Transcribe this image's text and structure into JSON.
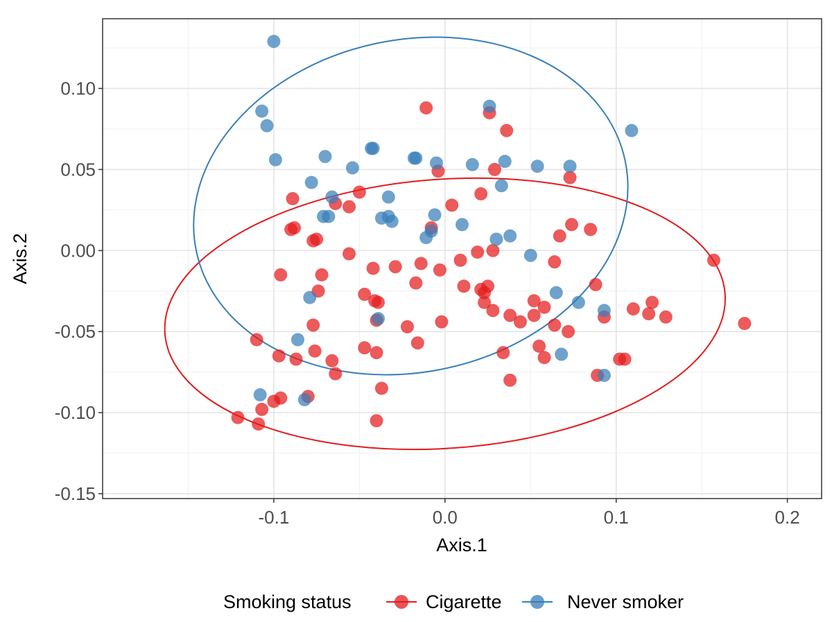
{
  "chart_data": {
    "type": "scatter",
    "title": "",
    "xlabel": "Axis.1",
    "ylabel": "Axis.2",
    "xlim": [
      -0.2,
      0.22
    ],
    "ylim": [
      -0.153,
      0.143
    ],
    "x_ticks": [
      -0.1,
      0.0,
      0.1,
      0.2
    ],
    "x_tick_labels": [
      "-0.1",
      "0.0",
      "0.1",
      "0.2"
    ],
    "y_ticks": [
      0.1,
      0.05,
      0.0,
      -0.05,
      -0.1,
      -0.15
    ],
    "y_tick_labels": [
      "0.10",
      "0.05",
      "0.00",
      "-0.05",
      "-0.10",
      "-0.15"
    ],
    "grid": true,
    "legend": {
      "title": "Smoking status",
      "position": "bottom",
      "entries": [
        "Cigarette",
        "Never smoker"
      ]
    },
    "series": [
      {
        "name": "Cigarette",
        "color": "#E41A1C",
        "points": [
          [
            -0.011,
            0.088
          ],
          [
            0.026,
            0.085
          ],
          [
            0.036,
            0.074
          ],
          [
            -0.004,
            0.049
          ],
          [
            0.029,
            0.05
          ],
          [
            0.073,
            0.045
          ],
          [
            -0.05,
            0.036
          ],
          [
            0.021,
            0.035
          ],
          [
            -0.089,
            0.032
          ],
          [
            -0.056,
            0.027
          ],
          [
            0.004,
            0.028
          ],
          [
            -0.064,
            0.029
          ],
          [
            0.074,
            0.016
          ],
          [
            0.085,
            0.013
          ],
          [
            -0.088,
            0.014
          ],
          [
            -0.09,
            0.013
          ],
          [
            -0.008,
            0.014
          ],
          [
            -0.077,
            0.006
          ],
          [
            -0.075,
            0.007
          ],
          [
            0.067,
            0.009
          ],
          [
            -0.056,
            -0.002
          ],
          [
            0.019,
            -0.001
          ],
          [
            0.028,
            0.0
          ],
          [
            -0.014,
            -0.008
          ],
          [
            0.009,
            -0.006
          ],
          [
            0.064,
            -0.007
          ],
          [
            -0.029,
            -0.01
          ],
          [
            -0.042,
            -0.011
          ],
          [
            -0.003,
            -0.012
          ],
          [
            0.157,
            -0.006
          ],
          [
            -0.096,
            -0.015
          ],
          [
            -0.072,
            -0.015
          ],
          [
            -0.017,
            -0.02
          ],
          [
            0.011,
            -0.022
          ],
          [
            0.088,
            -0.021
          ],
          [
            0.021,
            -0.024
          ],
          [
            0.025,
            -0.022
          ],
          [
            -0.074,
            -0.025
          ],
          [
            -0.047,
            -0.027
          ],
          [
            0.023,
            -0.026
          ],
          [
            -0.041,
            -0.031
          ],
          [
            -0.039,
            -0.032
          ],
          [
            0.052,
            -0.031
          ],
          [
            0.023,
            -0.032
          ],
          [
            0.121,
            -0.032
          ],
          [
            0.028,
            -0.037
          ],
          [
            0.058,
            -0.035
          ],
          [
            0.11,
            -0.036
          ],
          [
            0.038,
            -0.04
          ],
          [
            0.052,
            -0.04
          ],
          [
            0.093,
            -0.041
          ],
          [
            0.119,
            -0.039
          ],
          [
            0.129,
            -0.041
          ],
          [
            -0.04,
            -0.043
          ],
          [
            -0.002,
            -0.044
          ],
          [
            0.044,
            -0.044
          ],
          [
            0.064,
            -0.046
          ],
          [
            0.175,
            -0.045
          ],
          [
            -0.077,
            -0.046
          ],
          [
            -0.022,
            -0.047
          ],
          [
            0.072,
            -0.05
          ],
          [
            -0.11,
            -0.055
          ],
          [
            -0.016,
            -0.057
          ],
          [
            0.055,
            -0.059
          ],
          [
            -0.047,
            -0.06
          ],
          [
            -0.076,
            -0.062
          ],
          [
            -0.04,
            -0.063
          ],
          [
            0.034,
            -0.063
          ],
          [
            -0.097,
            -0.065
          ],
          [
            -0.087,
            -0.067
          ],
          [
            -0.066,
            -0.068
          ],
          [
            0.058,
            -0.066
          ],
          [
            0.102,
            -0.067
          ],
          [
            0.105,
            -0.067
          ],
          [
            -0.064,
            -0.076
          ],
          [
            0.089,
            -0.077
          ],
          [
            0.038,
            -0.08
          ],
          [
            -0.037,
            -0.085
          ],
          [
            -0.08,
            -0.09
          ],
          [
            -0.096,
            -0.091
          ],
          [
            -0.1,
            -0.093
          ],
          [
            -0.107,
            -0.098
          ],
          [
            -0.121,
            -0.103
          ],
          [
            -0.109,
            -0.107
          ],
          [
            -0.04,
            -0.105
          ]
        ]
      },
      {
        "name": "Never smoker",
        "color": "#377EB8",
        "points": [
          [
            -0.1,
            0.129
          ],
          [
            -0.107,
            0.086
          ],
          [
            -0.104,
            0.077
          ],
          [
            0.026,
            0.089
          ],
          [
            0.109,
            0.074
          ],
          [
            -0.099,
            0.056
          ],
          [
            -0.07,
            0.058
          ],
          [
            -0.043,
            0.063
          ],
          [
            -0.042,
            0.063
          ],
          [
            -0.054,
            0.051
          ],
          [
            -0.018,
            0.057
          ],
          [
            -0.017,
            0.057
          ],
          [
            -0.005,
            0.054
          ],
          [
            0.016,
            0.053
          ],
          [
            0.035,
            0.055
          ],
          [
            0.054,
            0.052
          ],
          [
            0.073,
            0.052
          ],
          [
            0.033,
            0.04
          ],
          [
            -0.078,
            0.042
          ],
          [
            -0.066,
            0.033
          ],
          [
            -0.033,
            0.033
          ],
          [
            -0.071,
            0.021
          ],
          [
            -0.068,
            0.021
          ],
          [
            -0.037,
            0.02
          ],
          [
            -0.033,
            0.021
          ],
          [
            -0.031,
            0.018
          ],
          [
            -0.006,
            0.022
          ],
          [
            0.01,
            0.016
          ],
          [
            -0.008,
            0.012
          ],
          [
            -0.011,
            0.008
          ],
          [
            0.03,
            0.007
          ],
          [
            0.038,
            0.009
          ],
          [
            0.05,
            -0.003
          ],
          [
            -0.079,
            -0.029
          ],
          [
            0.065,
            -0.026
          ],
          [
            0.078,
            -0.032
          ],
          [
            0.093,
            -0.037
          ],
          [
            -0.039,
            -0.042
          ],
          [
            -0.086,
            -0.055
          ],
          [
            0.068,
            -0.064
          ],
          [
            0.093,
            -0.077
          ],
          [
            -0.108,
            -0.089
          ],
          [
            -0.082,
            -0.092
          ]
        ]
      }
    ],
    "ellipses": [
      {
        "series": "Cigarette",
        "cx": 0.0,
        "cy": -0.039,
        "rx": 0.164,
        "ry": 0.083,
        "angle_deg": -4
      },
      {
        "series": "Never smoker",
        "cx": -0.02,
        "cy": 0.0275,
        "rx": 0.128,
        "ry": 0.1025,
        "angle_deg": -12
      }
    ]
  }
}
